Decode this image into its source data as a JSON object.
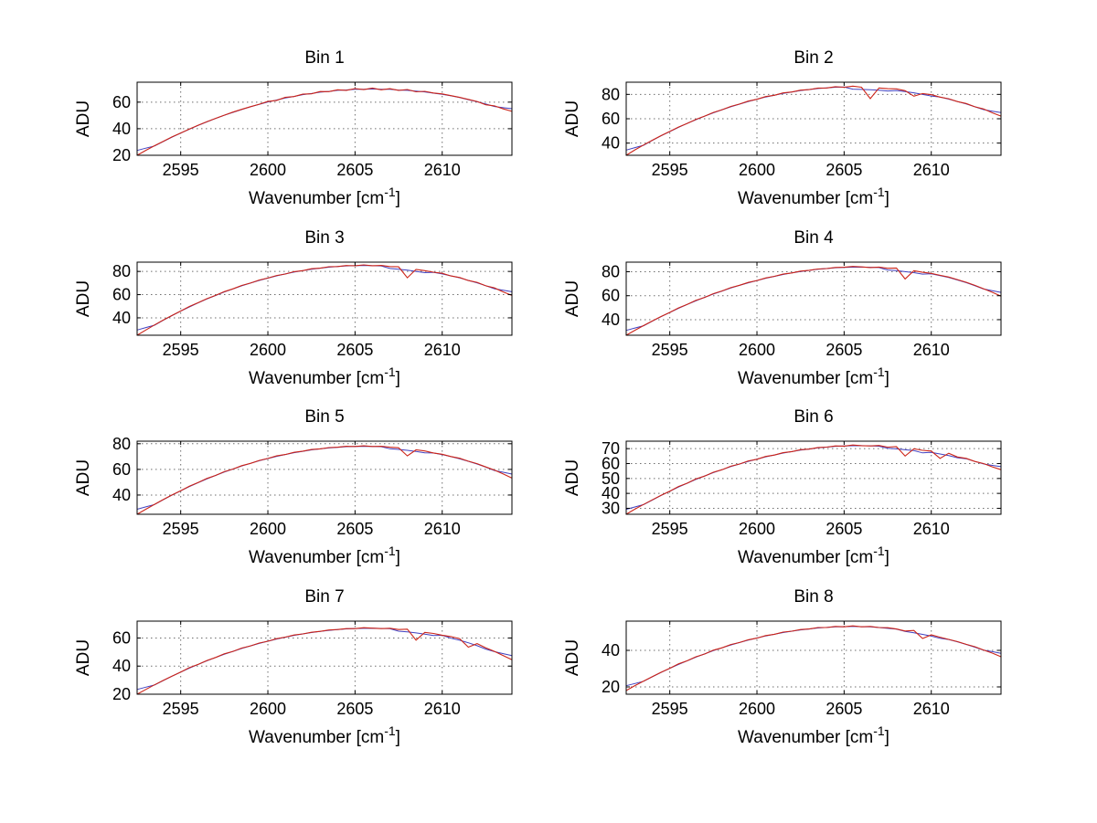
{
  "figure": {
    "background": "#ffffff",
    "axis_color": "#000000",
    "grid_color": "#6e6e6e",
    "text_color": "#000000",
    "line_color": "#cc2418",
    "underlay_color": "#4040c0"
  },
  "chart_data": [
    {
      "type": "line",
      "title": "Bin 1",
      "ylabel": "ADU",
      "xlabel": {
        "prefix": "Wavenumber [cm",
        "sup": "-1",
        "suffix": "]"
      },
      "xlim": [
        2592.5,
        2614
      ],
      "ylim": [
        20,
        75
      ],
      "xticks": [
        2595,
        2600,
        2605,
        2610
      ],
      "yticks": [
        20,
        40,
        60
      ],
      "x_start": 2592.5,
      "x_step": 0.5,
      "y": [
        20,
        23.7,
        27.2,
        30.5,
        33.8,
        36.8,
        39.8,
        42.6,
        45.3,
        47.8,
        50.2,
        52.5,
        54.6,
        56.6,
        58.4,
        60.5,
        61.3,
        63.6,
        64.2,
        66.0,
        66.3,
        68.0,
        67.9,
        69.3,
        68.9,
        70.2,
        69.4,
        70.6,
        69.3,
        70.1,
        68.9,
        69.5,
        67.8,
        68.1,
        66.9,
        66.2,
        64.9,
        63.6,
        62.1,
        60.5,
        58.0,
        57.2,
        54.9,
        53.1
      ]
    },
    {
      "type": "line",
      "title": "Bin 2",
      "ylabel": "ADU",
      "xlabel": {
        "prefix": "Wavenumber [cm",
        "sup": "-1",
        "suffix": "]"
      },
      "xlim": [
        2592.5,
        2614
      ],
      "ylim": [
        30,
        90
      ],
      "xticks": [
        2595,
        2600,
        2605,
        2610
      ],
      "yticks": [
        40,
        60,
        80
      ],
      "x_start": 2592.5,
      "x_step": 0.5,
      "y": [
        30,
        34.4,
        38.5,
        42.4,
        46.1,
        49.6,
        53.2,
        56.2,
        59.5,
        62.2,
        65.2,
        67.4,
        70.1,
        72.1,
        74.5,
        76.0,
        78.2,
        79.3,
        81.2,
        82.0,
        83.5,
        83.9,
        85.2,
        85.3,
        86.3,
        85.9,
        86.8,
        85.9,
        76.5,
        85.3,
        84.7,
        84.5,
        83.0,
        78.5,
        80.7,
        79.8,
        77.8,
        76.4,
        74.1,
        72.5,
        69.8,
        68.0,
        64.9,
        62.2
      ]
    },
    {
      "type": "line",
      "title": "Bin 3",
      "ylabel": "ADU",
      "xlabel": {
        "prefix": "Wavenumber [cm",
        "sup": "-1",
        "suffix": "]"
      },
      "xlim": [
        2592.5,
        2614
      ],
      "ylim": [
        25,
        88
      ],
      "xticks": [
        2595,
        2600,
        2605,
        2610
      ],
      "yticks": [
        40,
        60,
        80
      ],
      "x_start": 2592.5,
      "x_step": 0.5,
      "y": [
        25,
        29.5,
        33.9,
        38.1,
        42.0,
        45.9,
        49.8,
        53.0,
        56.5,
        59.3,
        62.6,
        65.0,
        67.9,
        70.0,
        72.6,
        74.3,
        76.5,
        77.8,
        79.8,
        80.7,
        82.3,
        82.8,
        84.1,
        84.2,
        85.1,
        84.9,
        85.6,
        84.9,
        85.2,
        84.2,
        84.0,
        74.5,
        81.8,
        80.7,
        79.3,
        78.4,
        76.1,
        74.8,
        72.2,
        70.6,
        67.6,
        65.8,
        62.3,
        59.3
      ]
    },
    {
      "type": "line",
      "title": "Bin 4",
      "ylabel": "ADU",
      "xlabel": {
        "prefix": "Wavenumber [cm",
        "sup": "-1",
        "suffix": "]"
      },
      "xlim": [
        2592.5,
        2614
      ],
      "ylim": [
        27,
        88
      ],
      "xticks": [
        2595,
        2600,
        2605,
        2610
      ],
      "yticks": [
        40,
        60,
        80
      ],
      "x_start": 2592.5,
      "x_step": 0.5,
      "y": [
        27,
        31.1,
        35.1,
        38.9,
        42.6,
        46.1,
        49.8,
        52.7,
        56.1,
        58.6,
        61.7,
        64.0,
        66.7,
        68.7,
        71.1,
        72.7,
        74.8,
        76.2,
        78.0,
        79.0,
        80.5,
        81.2,
        82.3,
        82.7,
        83.6,
        83.7,
        84.4,
        84.0,
        83.5,
        83.9,
        82.9,
        83.1,
        74.0,
        80.8,
        79.5,
        78.6,
        77.0,
        75.6,
        73.4,
        71.2,
        68.6,
        65.8,
        62.8,
        59.6
      ]
    },
    {
      "type": "line",
      "title": "Bin 5",
      "ylabel": "ADU",
      "xlabel": {
        "prefix": "Wavenumber [cm",
        "sup": "-1",
        "suffix": "]"
      },
      "xlim": [
        2592.5,
        2614
      ],
      "ylim": [
        25,
        82
      ],
      "xticks": [
        2595,
        2600,
        2605,
        2610
      ],
      "yticks": [
        40,
        60,
        80
      ],
      "x_start": 2592.5,
      "x_step": 0.5,
      "y": [
        25,
        28.9,
        32.8,
        36.5,
        40.0,
        43.4,
        46.9,
        49.7,
        52.9,
        55.3,
        58.2,
        60.3,
        62.9,
        64.7,
        67.0,
        68.5,
        70.5,
        71.6,
        73.3,
        74.2,
        75.5,
        76.0,
        77.0,
        77.3,
        78.0,
        77.9,
        78.4,
        77.9,
        78.0,
        77.3,
        76.9,
        70.5,
        75.2,
        74.4,
        72.8,
        71.8,
        70.0,
        68.7,
        66.4,
        64.5,
        61.9,
        59.5,
        56.4,
        53.2
      ]
    },
    {
      "type": "line",
      "title": "Bin 6",
      "ylabel": "ADU",
      "xlabel": {
        "prefix": "Wavenumber [cm",
        "sup": "-1",
        "suffix": "]"
      },
      "xlim": [
        2592.5,
        2614
      ],
      "ylim": [
        26,
        75
      ],
      "xticks": [
        2595,
        2600,
        2605,
        2610
      ],
      "yticks": [
        30,
        40,
        50,
        60,
        70
      ],
      "x_start": 2592.5,
      "x_step": 0.5,
      "y": [
        26,
        29.4,
        32.6,
        35.7,
        38.7,
        41.5,
        44.6,
        46.8,
        49.7,
        51.6,
        54.2,
        55.9,
        58.2,
        59.7,
        61.8,
        62.9,
        64.8,
        65.7,
        67.3,
        68.0,
        69.3,
        69.7,
        70.8,
        71.0,
        71.8,
        71.7,
        72.4,
        72.0,
        71.8,
        72.1,
        71.0,
        71.4,
        65.0,
        69.9,
        68.9,
        68.4,
        63.5,
        66.9,
        64.4,
        63.5,
        61.4,
        60.0,
        57.8,
        55.9
      ]
    },
    {
      "type": "line",
      "title": "Bin 7",
      "ylabel": "ADU",
      "xlabel": {
        "prefix": "Wavenumber [cm",
        "sup": "-1",
        "suffix": "]"
      },
      "xlim": [
        2592.5,
        2614
      ],
      "ylim": [
        20,
        72
      ],
      "xticks": [
        2595,
        2600,
        2605,
        2610
      ],
      "yticks": [
        20,
        40,
        60
      ],
      "x_start": 2592.5,
      "x_step": 0.5,
      "y": [
        20,
        23.4,
        26.7,
        29.8,
        32.9,
        35.8,
        38.9,
        41.2,
        44.0,
        46.1,
        48.7,
        50.5,
        52.8,
        54.4,
        56.4,
        57.7,
        59.5,
        60.6,
        62.1,
        62.9,
        64.1,
        64.7,
        65.7,
        66.0,
        66.7,
        66.7,
        67.3,
        67.0,
        66.7,
        66.9,
        66.0,
        66.3,
        58.5,
        64.0,
        63.2,
        62.0,
        61.0,
        59.5,
        53.5,
        56.0,
        53.0,
        50.5,
        47.5,
        44.5
      ]
    },
    {
      "type": "line",
      "title": "Bin 8",
      "ylabel": "ADU",
      "xlabel": {
        "prefix": "Wavenumber [cm",
        "sup": "-1",
        "suffix": "]"
      },
      "xlim": [
        2592.5,
        2614
      ],
      "ylim": [
        16,
        56
      ],
      "xticks": [
        2595,
        2600,
        2605,
        2610
      ],
      "yticks": [
        20,
        40
      ],
      "x_start": 2592.5,
      "x_step": 0.5,
      "y": [
        18,
        20.7,
        23.2,
        25.6,
        28.0,
        30.2,
        32.6,
        34.3,
        36.5,
        38.0,
        40.1,
        41.4,
        43.2,
        44.3,
        45.8,
        46.7,
        48.1,
        48.8,
        50.0,
        50.5,
        51.4,
        51.7,
        52.5,
        52.5,
        53.1,
        52.9,
        53.4,
        52.9,
        53.1,
        52.5,
        52.4,
        51.7,
        50.6,
        50.9,
        46.5,
        48.5,
        47.2,
        46.0,
        44.8,
        43.3,
        42.0,
        40.2,
        38.5,
        36.5
      ]
    }
  ]
}
